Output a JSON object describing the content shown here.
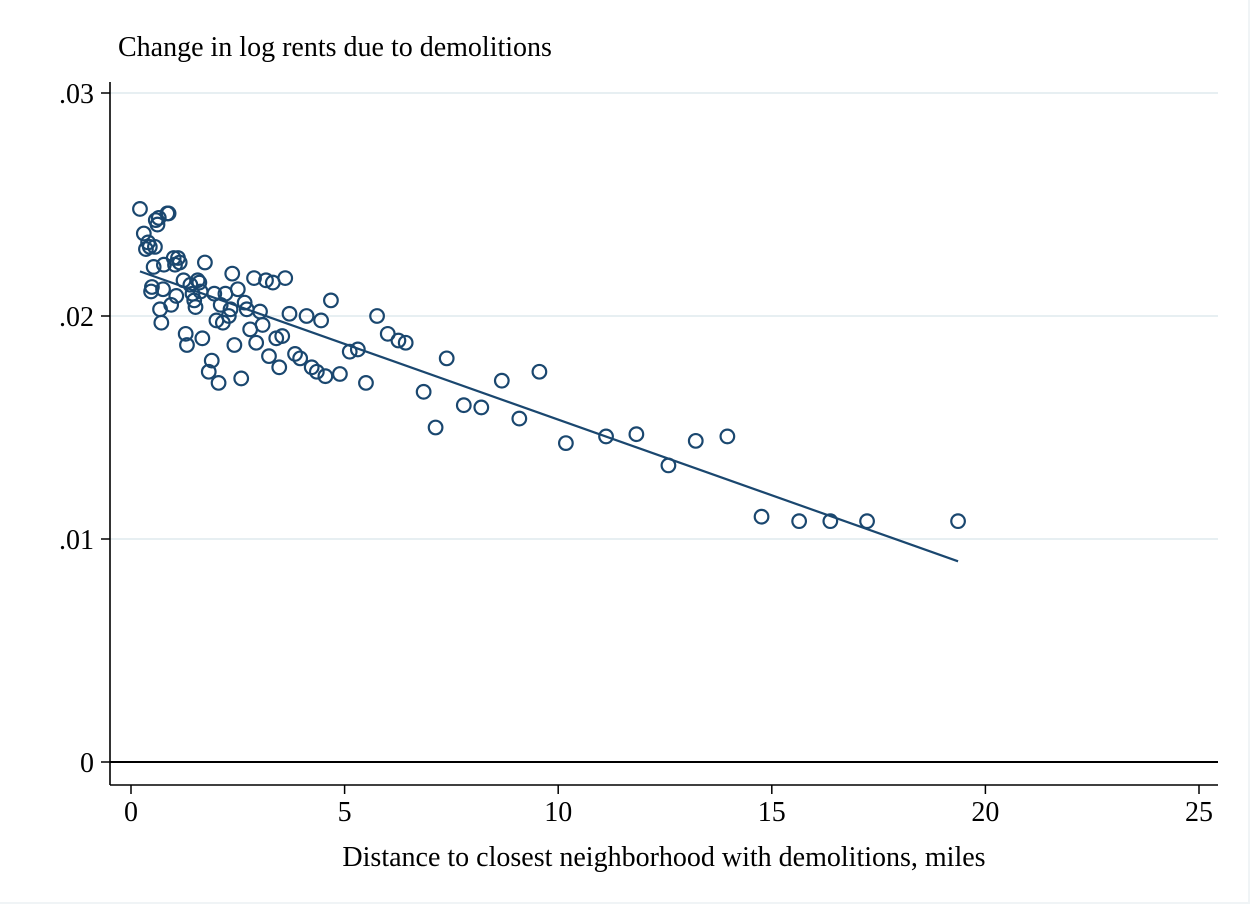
{
  "chart_data": {
    "type": "scatter",
    "title": "",
    "ylabel": "Change in log rents due to demolitions",
    "xlabel": "Distance to closest neighborhood with demolitions, miles",
    "xlim": [
      0,
      25
    ],
    "ylim": [
      0,
      0.03
    ],
    "x_ticks": [
      0,
      5,
      10,
      15,
      20,
      25
    ],
    "x_tick_labels": [
      "0",
      "5",
      "10",
      "15",
      "20",
      "25"
    ],
    "y_ticks": [
      0,
      0.01,
      0.02,
      0.03
    ],
    "y_tick_labels": [
      "0",
      ".01",
      ".02",
      ".03"
    ],
    "grid": true,
    "legend": "none",
    "colors": {
      "marker": "#1a476f",
      "fit_line": "#1a476f",
      "grid": "#e7eff2",
      "zero_line": "#000000"
    },
    "series": [
      {
        "kind": "points",
        "points": [
          [
            0.21,
            0.0248
          ],
          [
            0.3,
            0.0237
          ],
          [
            0.35,
            0.023
          ],
          [
            0.4,
            0.0233
          ],
          [
            0.44,
            0.0231
          ],
          [
            0.47,
            0.0211
          ],
          [
            0.49,
            0.0213
          ],
          [
            0.53,
            0.0222
          ],
          [
            0.56,
            0.0231
          ],
          [
            0.58,
            0.0243
          ],
          [
            0.62,
            0.0241
          ],
          [
            0.65,
            0.0244
          ],
          [
            0.68,
            0.0203
          ],
          [
            0.71,
            0.0197
          ],
          [
            0.75,
            0.0212
          ],
          [
            0.77,
            0.0223
          ],
          [
            0.85,
            0.0246
          ],
          [
            0.88,
            0.0246
          ],
          [
            0.94,
            0.0205
          ],
          [
            1.0,
            0.0226
          ],
          [
            1.03,
            0.0223
          ],
          [
            1.06,
            0.0209
          ],
          [
            1.1,
            0.0226
          ],
          [
            1.14,
            0.0224
          ],
          [
            1.23,
            0.0216
          ],
          [
            1.28,
            0.0192
          ],
          [
            1.31,
            0.0187
          ],
          [
            1.39,
            0.0214
          ],
          [
            1.44,
            0.021
          ],
          [
            1.48,
            0.0207
          ],
          [
            1.51,
            0.0204
          ],
          [
            1.56,
            0.0216
          ],
          [
            1.6,
            0.0215
          ],
          [
            1.63,
            0.0211
          ],
          [
            1.67,
            0.019
          ],
          [
            1.73,
            0.0224
          ],
          [
            1.82,
            0.0175
          ],
          [
            1.89,
            0.018
          ],
          [
            1.95,
            0.021
          ],
          [
            2.0,
            0.0198
          ],
          [
            2.05,
            0.017
          ],
          [
            2.1,
            0.0205
          ],
          [
            2.15,
            0.0197
          ],
          [
            2.21,
            0.021
          ],
          [
            2.29,
            0.02
          ],
          [
            2.33,
            0.0203
          ],
          [
            2.37,
            0.0219
          ],
          [
            2.42,
            0.0187
          ],
          [
            2.5,
            0.0212
          ],
          [
            2.58,
            0.0172
          ],
          [
            2.66,
            0.0206
          ],
          [
            2.71,
            0.0203
          ],
          [
            2.79,
            0.0194
          ],
          [
            2.88,
            0.0217
          ],
          [
            2.93,
            0.0188
          ],
          [
            3.02,
            0.0202
          ],
          [
            3.08,
            0.0196
          ],
          [
            3.16,
            0.0216
          ],
          [
            3.23,
            0.0182
          ],
          [
            3.32,
            0.0215
          ],
          [
            3.4,
            0.019
          ],
          [
            3.47,
            0.0177
          ],
          [
            3.54,
            0.0191
          ],
          [
            3.61,
            0.0217
          ],
          [
            3.71,
            0.0201
          ],
          [
            3.84,
            0.0183
          ],
          [
            3.96,
            0.0181
          ],
          [
            4.11,
            0.02
          ],
          [
            4.23,
            0.0177
          ],
          [
            4.35,
            0.0175
          ],
          [
            4.45,
            0.0198
          ],
          [
            4.55,
            0.0173
          ],
          [
            4.68,
            0.0207
          ],
          [
            4.89,
            0.0174
          ],
          [
            5.12,
            0.0184
          ],
          [
            5.31,
            0.0185
          ],
          [
            5.5,
            0.017
          ],
          [
            5.76,
            0.02
          ],
          [
            6.01,
            0.0192
          ],
          [
            6.26,
            0.0189
          ],
          [
            6.43,
            0.0188
          ],
          [
            6.85,
            0.0166
          ],
          [
            7.13,
            0.015
          ],
          [
            7.39,
            0.0181
          ],
          [
            7.79,
            0.016
          ],
          [
            8.2,
            0.0159
          ],
          [
            8.68,
            0.0171
          ],
          [
            9.09,
            0.0154
          ],
          [
            9.56,
            0.0175
          ],
          [
            10.18,
            0.0143
          ],
          [
            11.12,
            0.0146
          ],
          [
            11.83,
            0.0147
          ],
          [
            12.58,
            0.0133
          ],
          [
            13.22,
            0.0144
          ],
          [
            13.96,
            0.0146
          ],
          [
            14.76,
            0.011
          ],
          [
            15.64,
            0.0108
          ],
          [
            16.37,
            0.0108
          ],
          [
            17.23,
            0.0108
          ],
          [
            19.36,
            0.0108
          ]
        ]
      },
      {
        "kind": "fitted-line",
        "x": [
          0.21,
          19.36
        ],
        "y": [
          0.022,
          0.009
        ]
      }
    ]
  }
}
